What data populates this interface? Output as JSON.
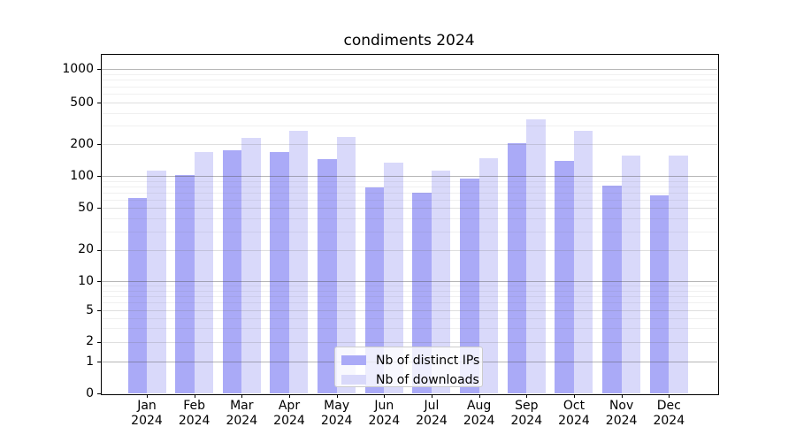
{
  "title": "condiments 2024",
  "legend": {
    "items": [
      {
        "label": "Nb of distinct IPs",
        "color": "#aaaaf7",
        "swatch": "dark-purple-swatch"
      },
      {
        "label": "Nb of downloads",
        "color": "#d9d9fa",
        "swatch": "light-purple-swatch"
      }
    ]
  },
  "y_axis": {
    "tick_labels": [
      "0",
      "1",
      "2",
      "5",
      "10",
      "20",
      "50",
      "100",
      "200",
      "500",
      "1000"
    ]
  },
  "x_axis": {
    "months": [
      {
        "month": "Jan",
        "year": "2024"
      },
      {
        "month": "Feb",
        "year": "2024"
      },
      {
        "month": "Mar",
        "year": "2024"
      },
      {
        "month": "Apr",
        "year": "2024"
      },
      {
        "month": "May",
        "year": "2024"
      },
      {
        "month": "Jun",
        "year": "2024"
      },
      {
        "month": "Jul",
        "year": "2024"
      },
      {
        "month": "Aug",
        "year": "2024"
      },
      {
        "month": "Sep",
        "year": "2024"
      },
      {
        "month": "Oct",
        "year": "2024"
      },
      {
        "month": "Nov",
        "year": "2024"
      },
      {
        "month": "Dec",
        "year": "2024"
      }
    ]
  },
  "chart_data": {
    "type": "bar",
    "title": "condiments 2024",
    "categories": [
      "Jan 2024",
      "Feb 2024",
      "Mar 2024",
      "Apr 2024",
      "May 2024",
      "Jun 2024",
      "Jul 2024",
      "Aug 2024",
      "Sep 2024",
      "Oct 2024",
      "Nov 2024",
      "Dec 2024"
    ],
    "series": [
      {
        "name": "Nb of distinct IPs",
        "color": "#aaaaf7",
        "values": [
          62,
          103,
          175,
          168,
          145,
          78,
          70,
          95,
          205,
          140,
          82,
          66
        ]
      },
      {
        "name": "Nb of downloads",
        "color": "#d9d9fa",
        "values": [
          112,
          170,
          230,
          268,
          235,
          135,
          113,
          148,
          345,
          270,
          157,
          157
        ]
      }
    ],
    "xlabel": "",
    "ylabel": "",
    "yscale": "symlog",
    "yticks": [
      0,
      1,
      2,
      5,
      10,
      20,
      50,
      100,
      200,
      500,
      1000
    ],
    "ylim": [
      0,
      1400
    ],
    "grid": true,
    "grid_above_bars": true,
    "legend_position": "lower center"
  }
}
